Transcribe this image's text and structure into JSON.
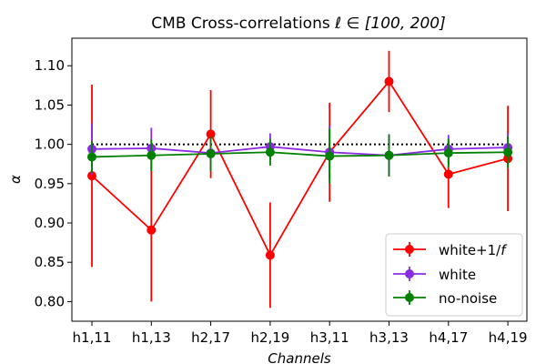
{
  "chart_data": {
    "type": "line",
    "title_prefix": "CMB Cross-correlations ",
    "title_math": "ℓ ∈ [100, 200]",
    "xlabel": "Channels",
    "ylabel": "α",
    "categories": [
      "h1,11",
      "h1,13",
      "h2,17",
      "h2,19",
      "h3,11",
      "h3,13",
      "h4,17",
      "h4,19"
    ],
    "ylim": [
      0.775,
      1.135
    ],
    "yticks": [
      "0.80",
      "0.85",
      "0.90",
      "0.95",
      "1.00",
      "1.05",
      "1.10"
    ],
    "reference_line": {
      "y": 1.0,
      "style": "dotted",
      "color": "#000000"
    },
    "series": [
      {
        "name": "white+1/f",
        "color": "#ff0000",
        "values": [
          0.96,
          0.891,
          1.013,
          0.859,
          0.99,
          1.08,
          0.962,
          0.982
        ],
        "errors": [
          0.116,
          0.091,
          0.056,
          0.067,
          0.063,
          0.039,
          0.043,
          0.067
        ]
      },
      {
        "name": "white",
        "color": "#8a2be2",
        "values": [
          0.994,
          0.995,
          0.989,
          0.997,
          0.99,
          0.986,
          0.994,
          0.996
        ],
        "errors": [
          0.033,
          0.026,
          0.02,
          0.017,
          0.034,
          0.026,
          0.018,
          0.018
        ]
      },
      {
        "name": "no-noise",
        "color": "#008000",
        "values": [
          0.984,
          0.986,
          0.988,
          0.99,
          0.985,
          0.986,
          0.989,
          0.99
        ],
        "errors": [
          0.02,
          0.02,
          0.022,
          0.017,
          0.035,
          0.027,
          0.018,
          0.02
        ]
      }
    ],
    "legend": {
      "location": "lower-right",
      "entries": [
        "white+1/",
        "white",
        "no-noise"
      ],
      "italic_suffix": "f"
    }
  }
}
